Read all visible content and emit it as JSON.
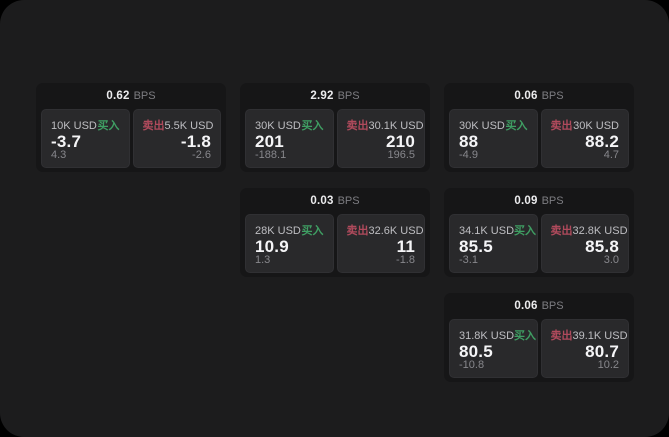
{
  "labels": {
    "bps": "BPS",
    "buy": "买入",
    "sell": "卖出"
  },
  "colors": {
    "buy_accent": "#3f9e63",
    "sell_accent": "#b04a5c",
    "window_bg": "#1c1c1d",
    "card_bg": "#161617",
    "panel_bg": "#29292b"
  },
  "cards": [
    {
      "row": 1,
      "col": 1,
      "bps": "0.62",
      "buy": {
        "size": "10K USD",
        "price": "-3.7",
        "delta": "4.3"
      },
      "sell": {
        "size": "5.5K USD",
        "price": "-1.8",
        "delta": "-2.6"
      }
    },
    {
      "row": 1,
      "col": 2,
      "bps": "2.92",
      "buy": {
        "size": "30K USD",
        "price": "201",
        "delta": "-188.1"
      },
      "sell": {
        "size": "30.1K USD",
        "price": "210",
        "delta": "196.5"
      }
    },
    {
      "row": 1,
      "col": 3,
      "bps": "0.06",
      "buy": {
        "size": "30K USD",
        "price": "88",
        "delta": "-4.9"
      },
      "sell": {
        "size": "30K USD",
        "price": "88.2",
        "delta": "4.7"
      }
    },
    {
      "row": 2,
      "col": 2,
      "bps": "0.03",
      "buy": {
        "size": "28K USD",
        "price": "10.9",
        "delta": "1.3"
      },
      "sell": {
        "size": "32.6K USD",
        "price": "11",
        "delta": "-1.8"
      }
    },
    {
      "row": 2,
      "col": 3,
      "bps": "0.09",
      "buy": {
        "size": "34.1K USD",
        "price": "85.5",
        "delta": "-3.1"
      },
      "sell": {
        "size": "32.8K USD",
        "price": "85.8",
        "delta": "3.0"
      }
    },
    {
      "row": 3,
      "col": 3,
      "bps": "0.06",
      "buy": {
        "size": "31.8K USD",
        "price": "80.5",
        "delta": "-10.8"
      },
      "sell": {
        "size": "39.1K USD",
        "price": "80.7",
        "delta": "10.2"
      }
    }
  ]
}
